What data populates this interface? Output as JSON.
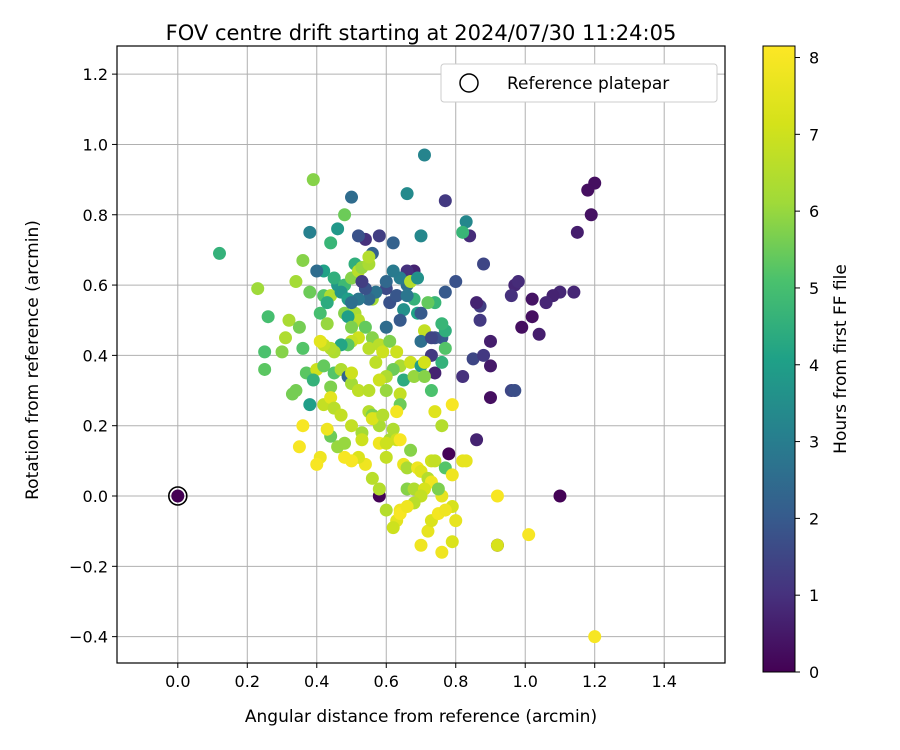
{
  "chart_data": {
    "type": "scatter",
    "title": "FOV centre drift starting at 2024/07/30 11:24:05",
    "xlabel": "Angular distance from reference (arcmin)",
    "ylabel": "Rotation from reference (arcmin)",
    "xlim": [
      -0.175,
      1.575
    ],
    "ylim": [
      -0.475,
      1.28
    ],
    "xticks": [
      "0.0",
      "0.2",
      "0.4",
      "0.6",
      "0.8",
      "1.0",
      "1.2",
      "1.4"
    ],
    "yticks": [
      "−0.4",
      "−0.2",
      "0.0",
      "0.2",
      "0.4",
      "0.6",
      "0.8",
      "1.0",
      "1.2"
    ],
    "grid": true,
    "legend": {
      "position": "top-right",
      "entries": [
        "Reference platepar"
      ]
    },
    "reference_point": {
      "x": 0.0,
      "y": 0.0
    },
    "colorbar": {
      "label": "Hours from first FF file",
      "range": [
        0,
        8.15
      ],
      "ticks": [
        "0",
        "1",
        "2",
        "3",
        "4",
        "5",
        "6",
        "7",
        "8"
      ],
      "colormap": "viridis"
    },
    "points": [
      [
        0.0,
        0.0,
        0.0
      ],
      [
        0.58,
        0.0,
        0.05
      ],
      [
        0.92,
        -0.14,
        0.05
      ],
      [
        0.78,
        0.12,
        0.05
      ],
      [
        1.1,
        0.0,
        0.05
      ],
      [
        1.2,
        0.89,
        0.3
      ],
      [
        1.18,
        0.87,
        0.3
      ],
      [
        1.19,
        0.8,
        0.35
      ],
      [
        1.15,
        0.75,
        0.6
      ],
      [
        1.14,
        0.58,
        0.8
      ],
      [
        1.1,
        0.58,
        0.8
      ],
      [
        1.08,
        0.57,
        0.7
      ],
      [
        1.06,
        0.55,
        0.8
      ],
      [
        1.02,
        0.56,
        0.4
      ],
      [
        1.02,
        0.51,
        0.3
      ],
      [
        0.99,
        0.48,
        0.3
      ],
      [
        1.04,
        0.46,
        0.6
      ],
      [
        0.97,
        0.6,
        0.8
      ],
      [
        0.98,
        0.61,
        0.9
      ],
      [
        0.96,
        0.57,
        1.0
      ],
      [
        0.96,
        0.3,
        1.5
      ],
      [
        0.97,
        0.3,
        1.7
      ],
      [
        0.9,
        0.44,
        0.6
      ],
      [
        0.9,
        0.37,
        0.5
      ],
      [
        0.9,
        0.28,
        0.3
      ],
      [
        0.87,
        0.5,
        1.2
      ],
      [
        0.87,
        0.54,
        1.3
      ],
      [
        0.86,
        0.55,
        0.7
      ],
      [
        0.82,
        0.34,
        1.0
      ],
      [
        0.85,
        0.39,
        1.5
      ],
      [
        0.88,
        0.4,
        1.2
      ],
      [
        0.88,
        0.66,
        1.5
      ],
      [
        0.86,
        0.16,
        0.7
      ],
      [
        0.84,
        0.74,
        0.9
      ],
      [
        0.83,
        0.78,
        3.3
      ],
      [
        0.82,
        0.75,
        4.7
      ],
      [
        0.8,
        0.61,
        1.8
      ],
      [
        0.77,
        0.58,
        2.0
      ],
      [
        0.77,
        0.84,
        1.2
      ],
      [
        0.76,
        0.45,
        2.0
      ],
      [
        0.74,
        0.45,
        1.8
      ],
      [
        0.73,
        0.4,
        1.2
      ],
      [
        0.74,
        0.35,
        0.7
      ],
      [
        0.71,
        0.97,
        3.2
      ],
      [
        0.7,
        0.74,
        3.3
      ],
      [
        0.68,
        0.64,
        0.7
      ],
      [
        0.66,
        0.64,
        1.0
      ],
      [
        0.66,
        0.86,
        3.4
      ],
      [
        0.66,
        0.6,
        2.6
      ],
      [
        0.64,
        0.62,
        3.0
      ],
      [
        0.62,
        0.72,
        2.2
      ],
      [
        0.6,
        0.48,
        2.5
      ],
      [
        0.62,
        0.64,
        2.9
      ],
      [
        0.58,
        0.74,
        1.3
      ],
      [
        0.56,
        0.69,
        2.2
      ],
      [
        0.54,
        0.73,
        1.0
      ],
      [
        0.52,
        0.74,
        1.8
      ],
      [
        0.5,
        0.85,
        2.5
      ],
      [
        0.48,
        0.8,
        5.5
      ],
      [
        0.46,
        0.76,
        3.8
      ],
      [
        0.44,
        0.72,
        4.7
      ],
      [
        0.42,
        0.64,
        4.1
      ],
      [
        0.38,
        0.75,
        3.1
      ],
      [
        0.39,
        0.9,
        5.8
      ],
      [
        0.4,
        0.64,
        2.5
      ],
      [
        0.12,
        0.69,
        4.6
      ],
      [
        0.23,
        0.59,
        6.1
      ],
      [
        0.26,
        0.51,
        5.0
      ],
      [
        0.25,
        0.41,
        5.1
      ],
      [
        0.25,
        0.36,
        5.3
      ],
      [
        0.32,
        0.5,
        6.3
      ],
      [
        0.35,
        0.48,
        5.6
      ],
      [
        0.31,
        0.45,
        6.4
      ],
      [
        0.3,
        0.41,
        5.8
      ],
      [
        0.34,
        0.61,
        6.2
      ],
      [
        0.36,
        0.67,
        5.8
      ],
      [
        0.38,
        0.58,
        5.5
      ],
      [
        0.36,
        0.42,
        5.2
      ],
      [
        0.37,
        0.35,
        5.3
      ],
      [
        0.34,
        0.3,
        5.6
      ],
      [
        0.33,
        0.29,
        5.6
      ],
      [
        0.38,
        0.26,
        4.0
      ],
      [
        0.41,
        0.52,
        5.0
      ],
      [
        0.42,
        0.57,
        5.2
      ],
      [
        0.43,
        0.49,
        6.0
      ],
      [
        0.44,
        0.57,
        6.4
      ],
      [
        0.43,
        0.55,
        4.4
      ],
      [
        0.46,
        0.6,
        3.8
      ],
      [
        0.45,
        0.62,
        4.5
      ],
      [
        0.48,
        0.6,
        4.8
      ],
      [
        0.47,
        0.58,
        3.7
      ],
      [
        0.49,
        0.56,
        4.0
      ],
      [
        0.48,
        0.52,
        5.8
      ],
      [
        0.5,
        0.62,
        5.8
      ],
      [
        0.51,
        0.66,
        4.5
      ],
      [
        0.52,
        0.64,
        6.6
      ],
      [
        0.53,
        0.65,
        6.0
      ],
      [
        0.55,
        0.66,
        6.3
      ],
      [
        0.55,
        0.68,
        6.5
      ],
      [
        0.56,
        0.56,
        6.2
      ],
      [
        0.51,
        0.52,
        6.3
      ],
      [
        0.52,
        0.5,
        6.6
      ],
      [
        0.54,
        0.48,
        5.4
      ],
      [
        0.56,
        0.45,
        5.8
      ],
      [
        0.55,
        0.42,
        6.6
      ],
      [
        0.58,
        0.43,
        6.6
      ],
      [
        0.57,
        0.38,
        6.7
      ],
      [
        0.59,
        0.41,
        7.0
      ],
      [
        0.61,
        0.44,
        5.7
      ],
      [
        0.63,
        0.41,
        7.0
      ],
      [
        0.64,
        0.37,
        6.3
      ],
      [
        0.62,
        0.36,
        5.5
      ],
      [
        0.6,
        0.34,
        6.4
      ],
      [
        0.58,
        0.33,
        7.0
      ],
      [
        0.6,
        0.3,
        6.0
      ],
      [
        0.64,
        0.29,
        6.8
      ],
      [
        0.65,
        0.33,
        4.4
      ],
      [
        0.67,
        0.38,
        7.0
      ],
      [
        0.68,
        0.34,
        6.0
      ],
      [
        0.7,
        0.37,
        4.0
      ],
      [
        0.71,
        0.38,
        7.1
      ],
      [
        0.71,
        0.34,
        5.8
      ],
      [
        0.73,
        0.3,
        5.1
      ],
      [
        0.76,
        0.38,
        4.6
      ],
      [
        0.77,
        0.42,
        5.2
      ],
      [
        0.77,
        0.47,
        4.5
      ],
      [
        0.76,
        0.49,
        4.7
      ],
      [
        0.74,
        0.55,
        4.7
      ],
      [
        0.72,
        0.55,
        5.4
      ],
      [
        0.71,
        0.47,
        6.8
      ],
      [
        0.69,
        0.52,
        4.1
      ],
      [
        0.68,
        0.56,
        4.6
      ],
      [
        0.67,
        0.61,
        6.5
      ],
      [
        0.69,
        0.62,
        3.6
      ],
      [
        0.65,
        0.53,
        3.6
      ],
      [
        0.64,
        0.5,
        2.0
      ],
      [
        0.63,
        0.57,
        3.0
      ],
      [
        0.61,
        0.55,
        1.8
      ],
      [
        0.6,
        0.59,
        1.6
      ],
      [
        0.6,
        0.61,
        2.4
      ],
      [
        0.57,
        0.58,
        2.7
      ],
      [
        0.55,
        0.56,
        2.4
      ],
      [
        0.54,
        0.59,
        1.8
      ],
      [
        0.53,
        0.61,
        1.3
      ],
      [
        0.52,
        0.56,
        2.8
      ],
      [
        0.5,
        0.55,
        2.6
      ],
      [
        0.49,
        0.51,
        4.0
      ],
      [
        0.5,
        0.48,
        5.7
      ],
      [
        0.52,
        0.45,
        7.0
      ],
      [
        0.5,
        0.44,
        6.8
      ],
      [
        0.49,
        0.43,
        5.3
      ],
      [
        0.47,
        0.43,
        4.2
      ],
      [
        0.45,
        0.41,
        6.4
      ],
      [
        0.44,
        0.42,
        6.5
      ],
      [
        0.42,
        0.43,
        6.8
      ],
      [
        0.41,
        0.44,
        7.5
      ],
      [
        0.4,
        0.36,
        7.0
      ],
      [
        0.39,
        0.33,
        4.6
      ],
      [
        0.42,
        0.37,
        5.4
      ],
      [
        0.44,
        0.31,
        5.7
      ],
      [
        0.45,
        0.35,
        5.2
      ],
      [
        0.47,
        0.36,
        6.4
      ],
      [
        0.49,
        0.34,
        2.3
      ],
      [
        0.5,
        0.32,
        6.2
      ],
      [
        0.5,
        0.35,
        7.0
      ],
      [
        0.52,
        0.3,
        6.7
      ],
      [
        0.55,
        0.3,
        6.6
      ],
      [
        0.55,
        0.24,
        6.5
      ],
      [
        0.56,
        0.23,
        5.7
      ],
      [
        0.57,
        0.22,
        6.8
      ],
      [
        0.58,
        0.15,
        7.8
      ],
      [
        0.58,
        0.2,
        6.3
      ],
      [
        0.6,
        0.11,
        6.8
      ],
      [
        0.61,
        0.16,
        6.3
      ],
      [
        0.62,
        0.19,
        6.4
      ],
      [
        0.63,
        0.16,
        7.0
      ],
      [
        0.64,
        0.26,
        5.5
      ],
      [
        0.63,
        0.24,
        7.9
      ],
      [
        0.64,
        0.16,
        8.0
      ],
      [
        0.65,
        0.09,
        7.7
      ],
      [
        0.66,
        0.08,
        6.3
      ],
      [
        0.67,
        0.13,
        5.8
      ],
      [
        0.66,
        0.02,
        5.8
      ],
      [
        0.68,
        0.02,
        6.4
      ],
      [
        0.69,
        0.08,
        7.8
      ],
      [
        0.7,
        0.07,
        7.4
      ],
      [
        0.72,
        0.05,
        6.5
      ],
      [
        0.73,
        0.04,
        7.8
      ],
      [
        0.73,
        0.1,
        7.0
      ],
      [
        0.74,
        0.1,
        6.8
      ],
      [
        0.76,
        0.0,
        7.6
      ],
      [
        0.77,
        0.08,
        5.2
      ],
      [
        0.79,
        0.06,
        7.8
      ],
      [
        0.75,
        0.02,
        5.7
      ],
      [
        0.71,
        0.02,
        7.2
      ],
      [
        0.7,
        0.0,
        6.8
      ],
      [
        0.68,
        -0.02,
        6.6
      ],
      [
        0.64,
        -0.04,
        7.8
      ],
      [
        0.63,
        -0.07,
        7.5
      ],
      [
        0.62,
        -0.09,
        7.0
      ],
      [
        0.6,
        -0.04,
        6.5
      ],
      [
        0.58,
        0.02,
        6.5
      ],
      [
        0.56,
        0.05,
        6.6
      ],
      [
        0.54,
        0.09,
        7.8
      ],
      [
        0.52,
        0.11,
        7.3
      ],
      [
        0.5,
        0.1,
        8.0
      ],
      [
        0.48,
        0.11,
        8.0
      ],
      [
        0.46,
        0.14,
        6.0
      ],
      [
        0.44,
        0.17,
        5.5
      ],
      [
        0.43,
        0.19,
        7.8
      ],
      [
        0.41,
        0.11,
        7.8
      ],
      [
        0.4,
        0.09,
        8.0
      ],
      [
        0.35,
        0.14,
        8.0
      ],
      [
        0.36,
        0.2,
        8.0
      ],
      [
        0.42,
        0.26,
        6.8
      ],
      [
        0.44,
        0.28,
        7.5
      ],
      [
        0.45,
        0.25,
        6.6
      ],
      [
        0.47,
        0.23,
        6.8
      ],
      [
        0.48,
        0.15,
        6.0
      ],
      [
        0.5,
        0.2,
        6.8
      ],
      [
        0.53,
        0.18,
        6.2
      ],
      [
        0.53,
        0.16,
        7.0
      ],
      [
        0.56,
        0.22,
        7.3
      ],
      [
        0.59,
        0.23,
        6.5
      ],
      [
        0.6,
        0.15,
        7.0
      ],
      [
        0.64,
        -0.05,
        8.0
      ],
      [
        0.66,
        -0.03,
        7.8
      ],
      [
        0.7,
        -0.14,
        7.8
      ],
      [
        0.72,
        -0.1,
        7.6
      ],
      [
        0.73,
        -0.07,
        7.3
      ],
      [
        0.75,
        -0.05,
        7.9
      ],
      [
        0.76,
        -0.16,
        7.8
      ],
      [
        0.79,
        -0.13,
        7.3
      ],
      [
        0.8,
        -0.07,
        7.6
      ],
      [
        0.79,
        -0.03,
        7.2
      ],
      [
        0.77,
        -0.04,
        7.8
      ],
      [
        0.74,
        0.24,
        7.4
      ],
      [
        0.76,
        0.2,
        6.5
      ],
      [
        0.79,
        0.26,
        8.0
      ],
      [
        0.82,
        0.1,
        7.6
      ],
      [
        0.83,
        0.1,
        7.6
      ],
      [
        0.92,
        -0.14,
        7.2
      ],
      [
        0.92,
        0.0,
        8.0
      ],
      [
        1.01,
        -0.11,
        8.0
      ],
      [
        1.2,
        -0.4,
        8.0
      ],
      [
        0.63,
        0.57,
        1.9
      ],
      [
        0.7,
        0.52,
        2.0
      ],
      [
        0.66,
        0.57,
        2.8
      ],
      [
        0.7,
        0.44,
        2.6
      ],
      [
        0.73,
        0.45,
        1.5
      ]
    ]
  }
}
